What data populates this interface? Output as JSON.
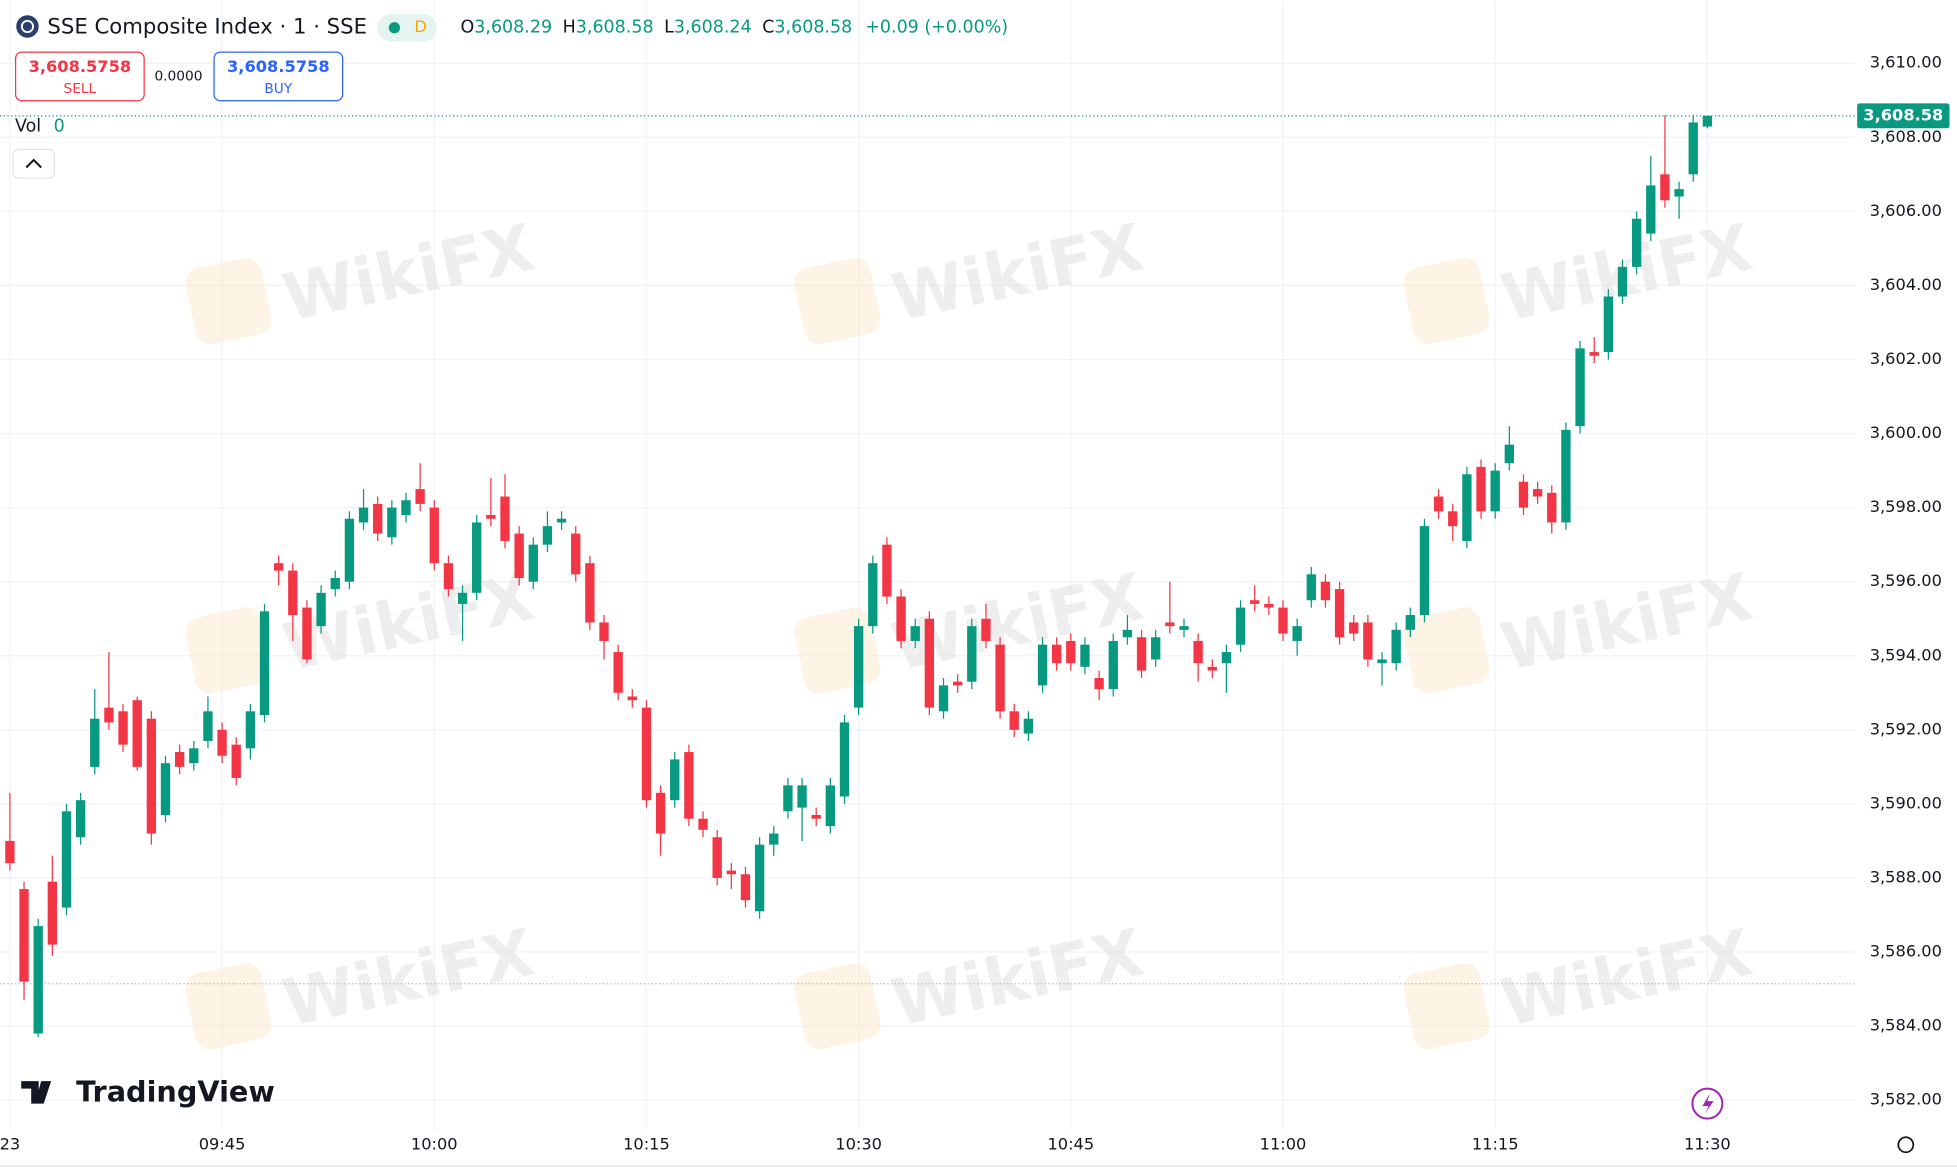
{
  "header": {
    "symbol": "SSE Composite Index · 1 · SSE",
    "session": "D",
    "o_label": "O",
    "o": "3,608.29",
    "h_label": "H",
    "h": "3,608.58",
    "l_label": "L",
    "l": "3,608.24",
    "c_label": "C",
    "c": "3,608.58",
    "change": "+0.09 (+0.00%)",
    "sell_price": "3,608.5758",
    "sell": "SELL",
    "spread": "0.0000",
    "buy_price": "3,608.5758",
    "buy": "BUY",
    "vol_label": "Vol",
    "vol": "0",
    "brand": "TradingView",
    "watermark": "WikiFX"
  },
  "chart_data": {
    "type": "candlestick",
    "up_color": "#089981",
    "down_color": "#f23645",
    "grid": true,
    "last_price_label": "3,608.58",
    "xlim": [
      -0.7,
      130.5
    ],
    "xticks": [
      {
        "value": 0,
        "label": "23"
      },
      {
        "value": 15,
        "label": "09:45"
      },
      {
        "value": 30,
        "label": "10:00"
      },
      {
        "value": 45,
        "label": "10:15"
      },
      {
        "value": 60,
        "label": "10:30"
      },
      {
        "value": 75,
        "label": "10:45"
      },
      {
        "value": 90,
        "label": "11:00"
      },
      {
        "value": 105,
        "label": "11:15"
      },
      {
        "value": 120,
        "label": "11:30"
      }
    ],
    "ylim": [
      3581.2,
      3611.7
    ],
    "yticks": [
      {
        "value": 3582,
        "label": "3,582.00"
      },
      {
        "value": 3584,
        "label": "3,584.00"
      },
      {
        "value": 3586,
        "label": "3,586.00"
      },
      {
        "value": 3588,
        "label": "3,588.00"
      },
      {
        "value": 3590,
        "label": "3,590.00"
      },
      {
        "value": 3592,
        "label": "3,592.00"
      },
      {
        "value": 3594,
        "label": "3,594.00"
      },
      {
        "value": 3596,
        "label": "3,596.00"
      },
      {
        "value": 3598,
        "label": "3,598.00"
      },
      {
        "value": 3600,
        "label": "3,600.00"
      },
      {
        "value": 3602,
        "label": "3,602.00"
      },
      {
        "value": 3604,
        "label": "3,604.00"
      },
      {
        "value": 3606,
        "label": "3,606.00"
      },
      {
        "value": 3608,
        "label": "3,608.00"
      },
      {
        "value": 3610,
        "label": "3,610.00"
      }
    ],
    "open": [
      3589.0,
      3587.7,
      3583.8,
      3587.9,
      3587.2,
      3589.1,
      3591.0,
      3592.6,
      3592.5,
      3592.8,
      3592.3,
      3589.7,
      3591.4,
      3591.1,
      3591.7,
      3592.0,
      3591.6,
      3591.5,
      3592.4,
      3596.5,
      3596.3,
      3595.3,
      3594.8,
      3595.8,
      3596.0,
      3597.6,
      3598.1,
      3597.2,
      3597.8,
      3598.5,
      3598.0,
      3596.5,
      3595.4,
      3595.7,
      3597.8,
      3598.3,
      3597.3,
      3596.0,
      3597.0,
      3597.6,
      3597.3,
      3596.5,
      3594.9,
      3594.1,
      3592.9,
      3592.6,
      3590.3,
      3590.1,
      3591.4,
      3589.6,
      3589.1,
      3588.2,
      3588.1,
      3587.1,
      3588.9,
      3589.8,
      3589.9,
      3589.7,
      3589.4,
      3590.2,
      3592.6,
      3594.8,
      3597.0,
      3595.6,
      3594.4,
      3595.0,
      3592.5,
      3593.3,
      3593.3,
      3595.0,
      3594.3,
      3592.5,
      3591.9,
      3593.2,
      3594.3,
      3594.4,
      3593.7,
      3593.4,
      3593.1,
      3594.5,
      3594.5,
      3593.9,
      3594.9,
      3594.7,
      3594.4,
      3593.7,
      3593.8,
      3594.3,
      3595.5,
      3595.4,
      3595.3,
      3594.4,
      3595.5,
      3596.0,
      3595.8,
      3594.9,
      3594.9,
      3593.8,
      3593.8,
      3594.7,
      3595.1,
      3598.3,
      3597.9,
      3597.1,
      3599.1,
      3597.9,
      3599.2,
      3598.7,
      3598.5,
      3598.4,
      3597.6,
      3600.2,
      3602.2,
      3602.2,
      3603.7,
      3604.5,
      3605.4,
      3607.0,
      3606.4,
      3607.0,
      3608.29
    ],
    "high": [
      3590.3,
      3587.9,
      3586.9,
      3588.6,
      3590.0,
      3590.3,
      3593.1,
      3594.1,
      3592.7,
      3592.9,
      3592.5,
      3591.3,
      3591.6,
      3591.7,
      3592.9,
      3592.2,
      3591.8,
      3592.7,
      3595.4,
      3596.7,
      3596.5,
      3595.5,
      3595.9,
      3596.3,
      3597.9,
      3598.5,
      3598.3,
      3598.2,
      3598.4,
      3599.2,
      3598.2,
      3596.7,
      3595.9,
      3597.8,
      3598.8,
      3598.9,
      3597.5,
      3597.2,
      3597.9,
      3597.9,
      3597.5,
      3596.7,
      3595.1,
      3594.3,
      3593.1,
      3592.8,
      3590.5,
      3591.4,
      3591.6,
      3589.8,
      3589.3,
      3588.4,
      3588.3,
      3589.1,
      3589.4,
      3590.7,
      3590.7,
      3589.9,
      3590.7,
      3592.4,
      3595.0,
      3596.7,
      3597.2,
      3595.8,
      3595.0,
      3595.2,
      3593.4,
      3593.5,
      3595.0,
      3595.4,
      3594.5,
      3592.7,
      3592.5,
      3594.5,
      3594.5,
      3594.6,
      3594.5,
      3593.6,
      3594.6,
      3595.1,
      3594.7,
      3594.7,
      3596.0,
      3595.0,
      3594.6,
      3593.9,
      3594.3,
      3595.5,
      3595.9,
      3595.6,
      3595.5,
      3595.0,
      3596.4,
      3596.2,
      3596.0,
      3595.1,
      3595.1,
      3594.1,
      3594.9,
      3595.3,
      3597.7,
      3598.5,
      3598.1,
      3599.1,
      3599.3,
      3599.2,
      3600.2,
      3598.9,
      3598.7,
      3598.6,
      3600.3,
      3602.5,
      3602.6,
      3603.9,
      3604.7,
      3606.0,
      3607.5,
      3608.6,
      3606.8,
      3608.6,
      3608.58
    ],
    "low": [
      3588.2,
      3584.7,
      3583.7,
      3585.9,
      3587.0,
      3588.9,
      3590.8,
      3592.0,
      3591.4,
      3590.9,
      3588.9,
      3589.5,
      3590.8,
      3590.9,
      3591.5,
      3591.1,
      3590.5,
      3591.2,
      3592.2,
      3595.9,
      3594.4,
      3593.8,
      3594.6,
      3595.6,
      3595.8,
      3597.4,
      3597.1,
      3597.0,
      3597.6,
      3597.9,
      3596.3,
      3595.6,
      3594.4,
      3595.5,
      3597.5,
      3596.9,
      3595.9,
      3595.8,
      3596.8,
      3597.4,
      3596.0,
      3594.7,
      3593.9,
      3592.8,
      3592.6,
      3589.9,
      3588.6,
      3589.9,
      3589.4,
      3589.1,
      3587.8,
      3587.7,
      3587.2,
      3586.9,
      3588.6,
      3589.6,
      3589.0,
      3589.4,
      3589.2,
      3590.0,
      3592.4,
      3594.6,
      3595.4,
      3594.2,
      3594.2,
      3592.4,
      3592.3,
      3593.0,
      3593.1,
      3594.2,
      3592.3,
      3591.8,
      3591.7,
      3593.0,
      3593.6,
      3593.6,
      3593.5,
      3592.8,
      3592.9,
      3594.3,
      3593.4,
      3593.7,
      3594.6,
      3594.5,
      3593.3,
      3593.4,
      3593.0,
      3594.1,
      3595.2,
      3595.1,
      3594.4,
      3594.0,
      3595.3,
      3595.3,
      3594.3,
      3594.4,
      3593.7,
      3593.2,
      3593.6,
      3594.5,
      3594.9,
      3597.7,
      3597.1,
      3596.9,
      3597.7,
      3597.7,
      3599.0,
      3597.8,
      3598.1,
      3597.3,
      3597.4,
      3600.0,
      3601.9,
      3602.0,
      3603.5,
      3604.3,
      3605.2,
      3606.1,
      3605.8,
      3606.8,
      3608.24
    ],
    "close": [
      3588.4,
      3585.2,
      3586.7,
      3586.2,
      3589.8,
      3590.1,
      3592.3,
      3592.2,
      3591.6,
      3591.0,
      3589.2,
      3591.1,
      3591.0,
      3591.5,
      3592.5,
      3591.3,
      3590.7,
      3592.5,
      3595.2,
      3596.3,
      3595.1,
      3593.9,
      3595.7,
      3596.1,
      3597.7,
      3598.0,
      3597.3,
      3598.0,
      3598.2,
      3598.1,
      3596.5,
      3595.8,
      3595.7,
      3597.6,
      3597.7,
      3597.1,
      3596.1,
      3597.0,
      3597.5,
      3597.7,
      3596.2,
      3594.9,
      3594.4,
      3593.0,
      3592.8,
      3590.1,
      3589.2,
      3591.2,
      3589.6,
      3589.3,
      3588.0,
      3588.1,
      3587.4,
      3588.9,
      3589.2,
      3590.5,
      3590.5,
      3589.6,
      3590.5,
      3592.2,
      3594.8,
      3596.5,
      3595.6,
      3594.4,
      3594.8,
      3592.6,
      3593.2,
      3593.2,
      3594.8,
      3594.4,
      3592.5,
      3592.0,
      3592.3,
      3594.3,
      3593.8,
      3593.8,
      3594.3,
      3593.1,
      3594.4,
      3594.7,
      3593.6,
      3594.5,
      3594.8,
      3594.8,
      3593.8,
      3593.6,
      3594.1,
      3595.3,
      3595.4,
      3595.3,
      3594.6,
      3594.8,
      3596.2,
      3595.5,
      3594.5,
      3594.6,
      3593.9,
      3593.9,
      3594.7,
      3595.1,
      3597.5,
      3597.9,
      3597.5,
      3598.9,
      3597.9,
      3599.0,
      3599.7,
      3598.0,
      3598.3,
      3597.6,
      3600.1,
      3602.3,
      3602.1,
      3603.7,
      3604.5,
      3605.8,
      3606.7,
      3606.3,
      3606.6,
      3608.4,
      3608.58
    ]
  }
}
